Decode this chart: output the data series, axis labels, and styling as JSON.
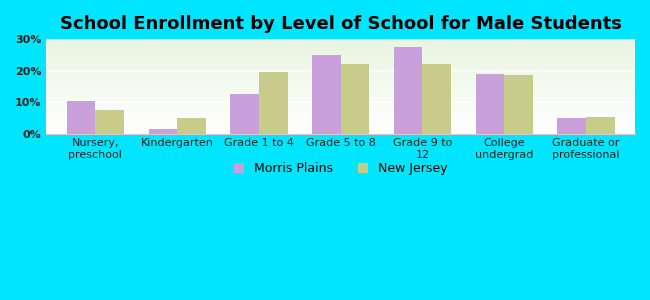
{
  "title": "School Enrollment by Level of School for Male Students",
  "categories": [
    "Nursery,\npreschool",
    "Kindergarten",
    "Grade 1 to 4",
    "Grade 5 to 8",
    "Grade 9 to\n12",
    "College\nundergrad",
    "Graduate or\nprofessional"
  ],
  "morris_plains": [
    10.5,
    1.5,
    12.5,
    25.0,
    27.5,
    19.0,
    5.0
  ],
  "new_jersey": [
    7.5,
    5.0,
    19.5,
    22.0,
    22.0,
    18.5,
    5.5
  ],
  "bar_color_morris": "#c9a0dc",
  "bar_color_nj": "#c8cc8a",
  "background_outer": "#00e5ff",
  "background_inner_top": "#e8f5e0",
  "background_inner_bottom": "#ffffff",
  "ylim": [
    0,
    30
  ],
  "yticks": [
    0,
    10,
    20,
    30
  ],
  "ytick_labels": [
    "0%",
    "10%",
    "20%",
    "30%"
  ],
  "legend_morris": "Morris Plains",
  "legend_nj": "New Jersey",
  "title_fontsize": 13,
  "tick_fontsize": 8,
  "legend_fontsize": 9,
  "bar_width": 0.35
}
